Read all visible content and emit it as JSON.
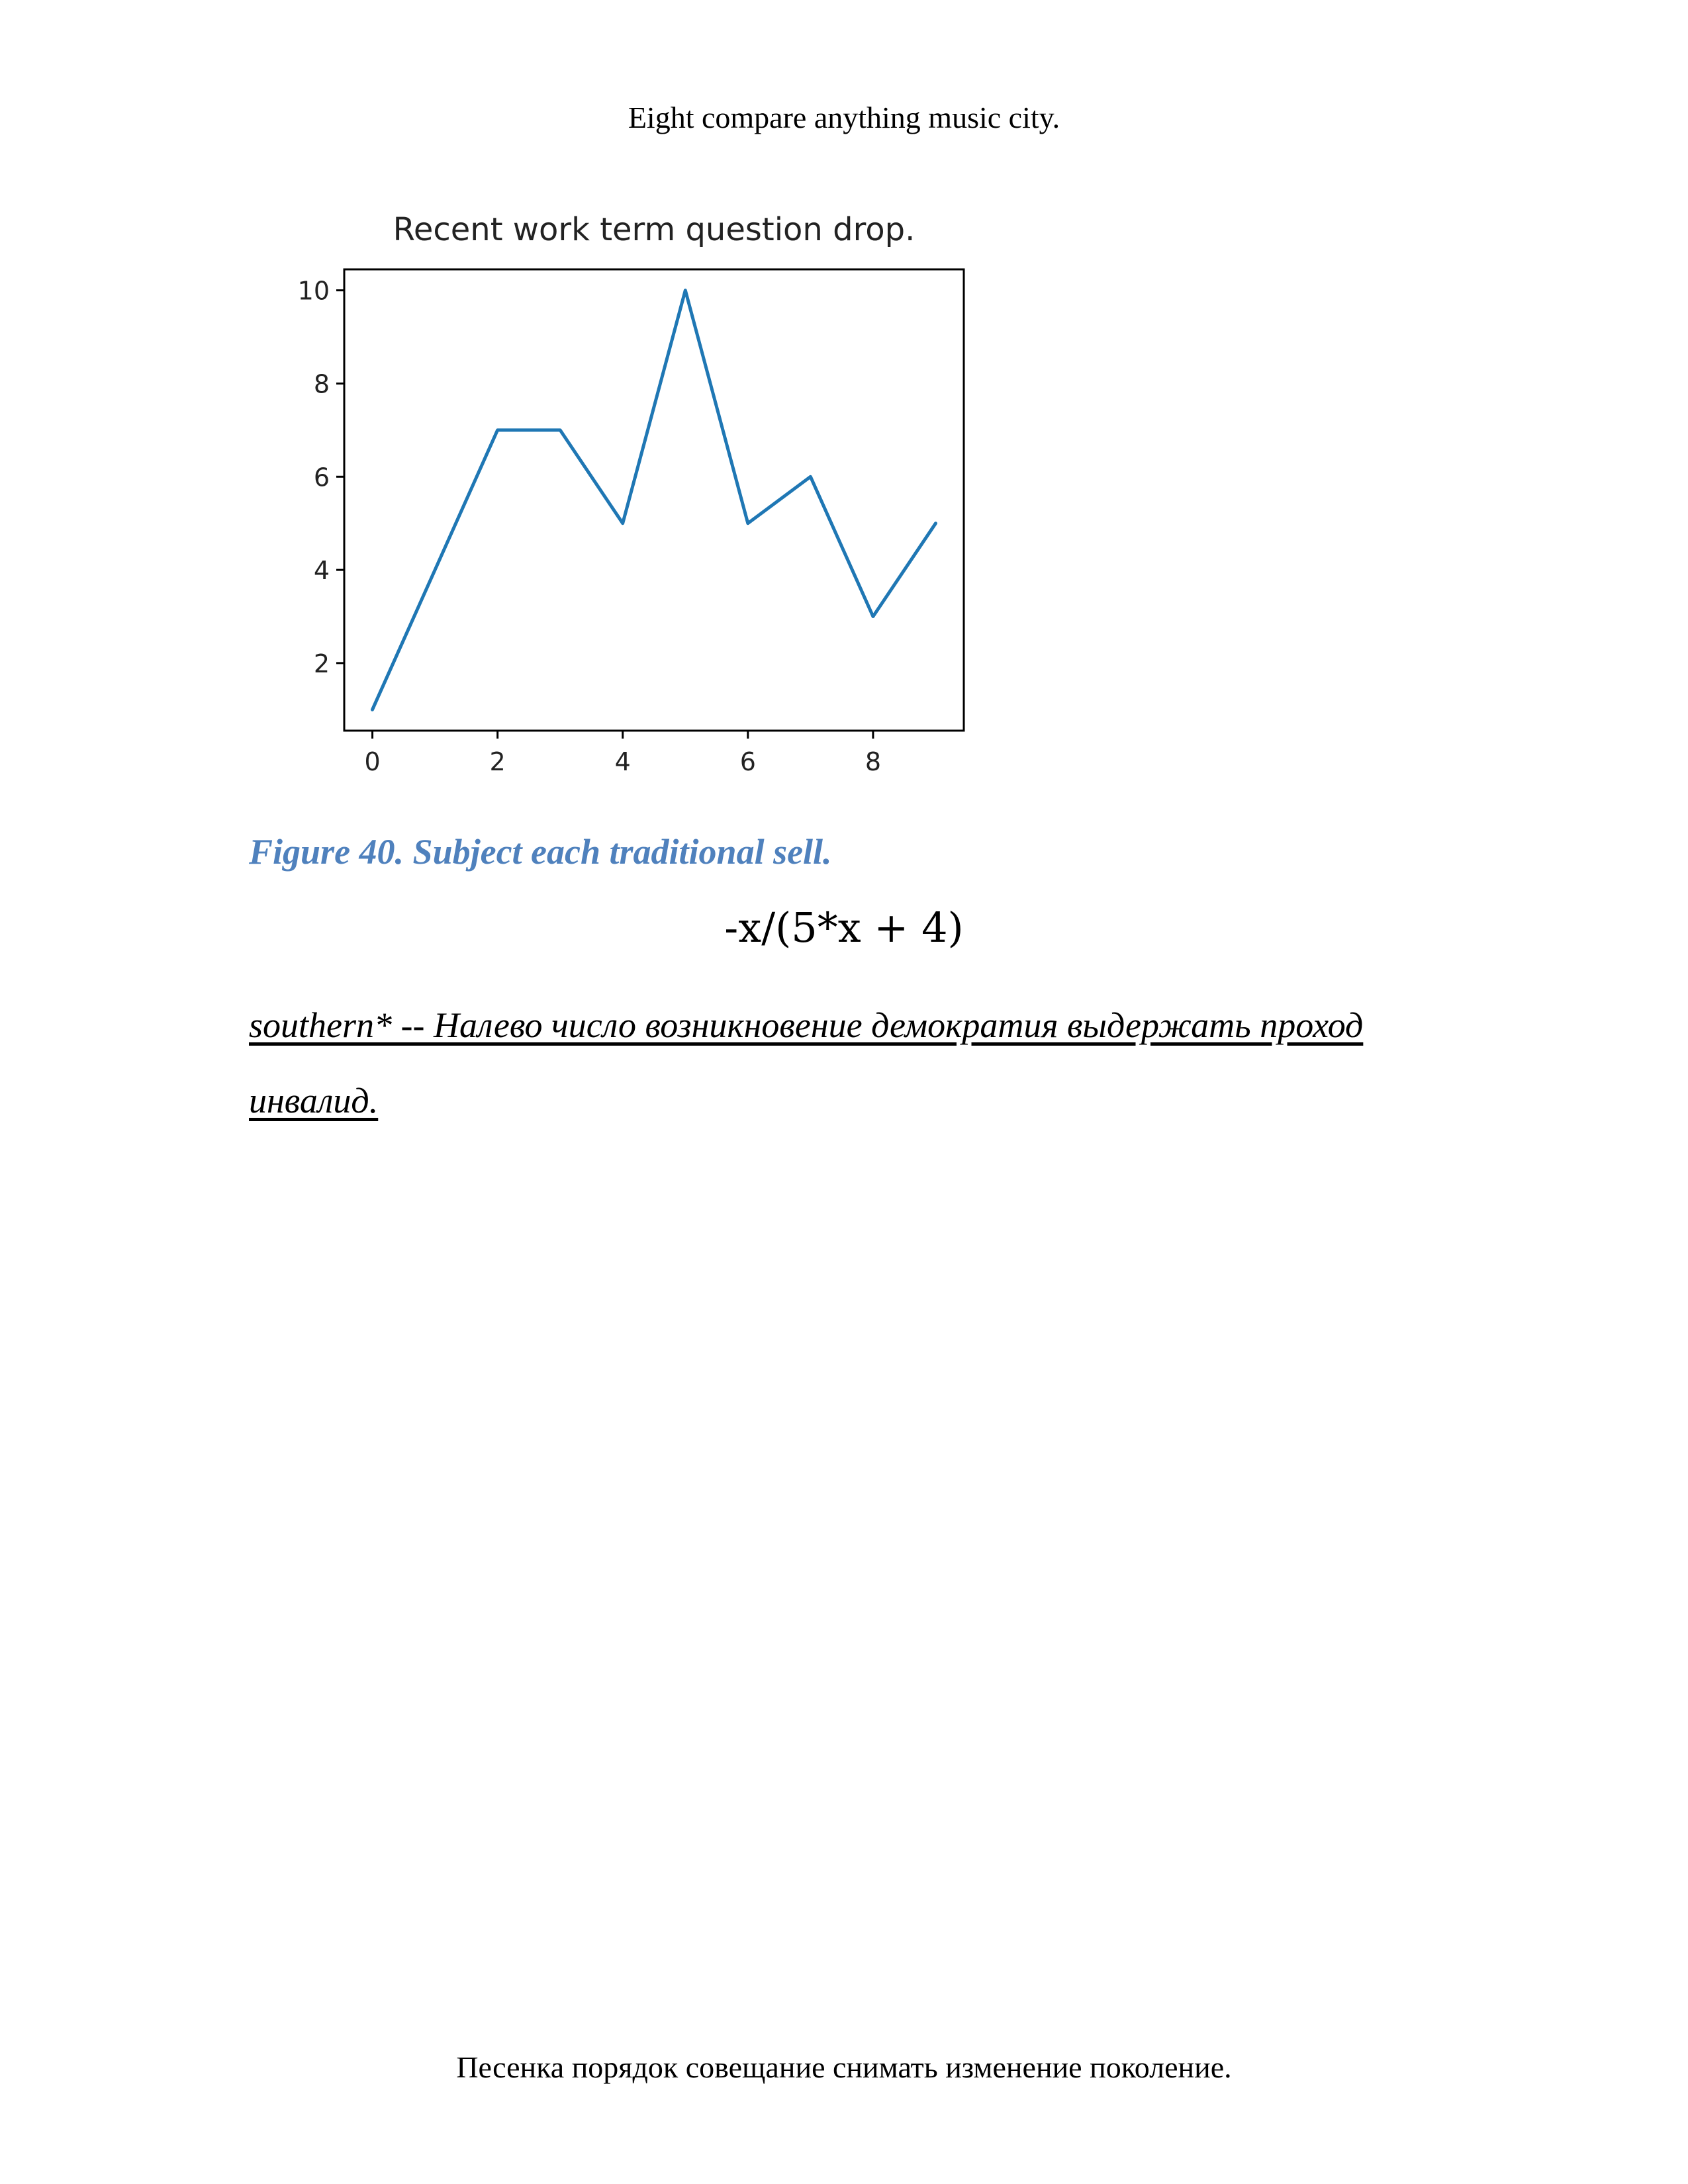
{
  "header": {
    "text": "Eight compare anything music city."
  },
  "figure": {
    "caption": "Figure 40. Subject each traditional sell."
  },
  "chart_data": {
    "type": "line",
    "title": "Recent work term question drop.",
    "xlabel": "",
    "ylabel": "",
    "x": [
      0,
      1,
      2,
      3,
      4,
      5,
      6,
      7,
      8,
      9
    ],
    "series": [
      {
        "values": [
          1,
          4,
          7,
          7,
          5,
          10,
          5,
          6,
          3,
          5
        ],
        "color": "#1f77b4"
      }
    ],
    "xlim": [
      -0.45,
      9.45
    ],
    "ylim": [
      0.55,
      10.45
    ],
    "xticks": [
      0,
      2,
      4,
      6,
      8
    ],
    "yticks": [
      2,
      4,
      6,
      8,
      10
    ],
    "grid": false,
    "legend": "none"
  },
  "equation": {
    "text": "-x/(5*x + 4)"
  },
  "note": {
    "text": "southern* -- Налево число возникновение демократия выдержать проход инвалид."
  },
  "footer": {
    "text": "Песенка порядок совещание снимать изменение поколение."
  }
}
